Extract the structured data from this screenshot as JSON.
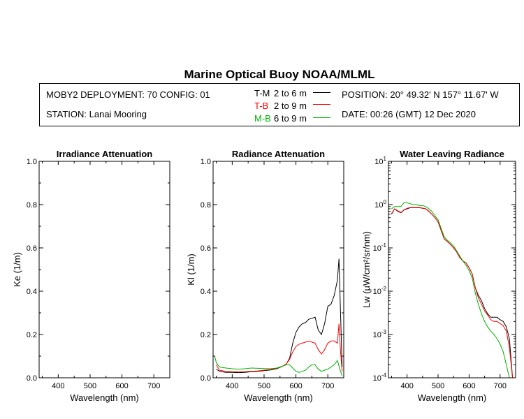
{
  "title": "Marine Optical Buoy NOAA/MLML",
  "header": {
    "deployment": "MOBY2 DEPLOYMENT: 70 CONFIG: 01",
    "station": "STATION: Lanai Mooring",
    "position": "POSITION: 20° 49.32' N   157° 11.67' W",
    "date": "DATE: 00:26 (GMT) 12 Dec 2020",
    "legend": [
      {
        "code": "T-M",
        "range": "2 to 6  m",
        "color": "#000000"
      },
      {
        "code": "T-B",
        "range": "2 to 9  m",
        "color": "#ff0000"
      },
      {
        "code": "M-B",
        "range": "6 to 9  m",
        "color": "#00b000"
      }
    ]
  },
  "chart_data": [
    {
      "type": "line",
      "title": "Irradiance Attenuation",
      "xlabel": "Wavelength (nm)",
      "ylabel": "Ke  (1/m)",
      "xlim": [
        340,
        750
      ],
      "ylim": [
        0,
        1
      ],
      "xticks": [
        "400",
        "500",
        "600",
        "700"
      ],
      "yticks": [
        "0.0",
        "0.2",
        "0.4",
        "0.6",
        "0.8",
        "1.0"
      ],
      "series": []
    },
    {
      "type": "line",
      "title": "Radiance Attenuation",
      "xlabel": "Wavelength (nm)",
      "ylabel": "Kl  (1/m)",
      "xlim": [
        340,
        750
      ],
      "ylim": [
        0,
        1
      ],
      "xticks": [
        "400",
        "500",
        "600",
        "700"
      ],
      "yticks": [
        "0.0",
        "0.2",
        "0.4",
        "0.6",
        "0.8",
        "1.0"
      ],
      "series": [
        {
          "name": "T-M",
          "color": "#000000",
          "x": [
            350,
            360,
            380,
            400,
            420,
            440,
            460,
            480,
            500,
            520,
            540,
            560,
            570,
            580,
            590,
            600,
            610,
            620,
            630,
            640,
            650,
            660,
            670,
            680,
            690,
            700,
            710,
            720,
            730,
            735,
            740,
            745
          ],
          "y": [
            0.04,
            0.03,
            0.025,
            0.025,
            0.024,
            0.025,
            0.028,
            0.03,
            0.033,
            0.036,
            0.042,
            0.055,
            0.065,
            0.09,
            0.16,
            0.21,
            0.235,
            0.25,
            0.255,
            0.27,
            0.275,
            0.28,
            0.22,
            0.2,
            0.25,
            0.33,
            0.34,
            0.38,
            0.45,
            0.55,
            0.3,
            0.05
          ]
        },
        {
          "name": "T-B",
          "color": "#ff0000",
          "x": [
            350,
            360,
            380,
            400,
            420,
            440,
            460,
            480,
            500,
            520,
            540,
            560,
            570,
            580,
            590,
            600,
            610,
            620,
            630,
            640,
            650,
            660,
            670,
            680,
            690,
            700,
            710,
            720,
            730,
            735,
            740,
            745
          ],
          "y": [
            0.06,
            0.035,
            0.03,
            0.028,
            0.027,
            0.028,
            0.03,
            0.032,
            0.035,
            0.038,
            0.044,
            0.055,
            0.065,
            0.085,
            0.12,
            0.145,
            0.155,
            0.16,
            0.165,
            0.17,
            0.165,
            0.16,
            0.13,
            0.11,
            0.13,
            0.16,
            0.17,
            0.17,
            0.16,
            0.25,
            0.12,
            0.03
          ]
        },
        {
          "name": "M-B",
          "color": "#00b000",
          "x": [
            345,
            350,
            360,
            380,
            400,
            420,
            440,
            460,
            480,
            500,
            520,
            540,
            560,
            570,
            580,
            590,
            600,
            610,
            620,
            630,
            640,
            650,
            660,
            670,
            680,
            690,
            700,
            710,
            720,
            730,
            740,
            745
          ],
          "y": [
            0.1,
            0.07,
            0.05,
            0.045,
            0.042,
            0.04,
            0.042,
            0.045,
            0.044,
            0.043,
            0.042,
            0.045,
            0.055,
            0.06,
            0.06,
            0.045,
            0.03,
            0.025,
            0.03,
            0.035,
            0.05,
            0.06,
            0.06,
            0.04,
            0.03,
            0.035,
            0.04,
            0.05,
            0.06,
            0.08,
            0.03,
            0.01
          ]
        }
      ]
    },
    {
      "type": "line",
      "title": "Water Leaving Radiance",
      "xlabel": "Wavelength (nm)",
      "ylabel": "Lw  (µW/cm²/sr/nm)",
      "xlim": [
        340,
        750
      ],
      "ylim": [
        0.0001,
        10
      ],
      "yscale": "log",
      "xticks": [
        "400",
        "500",
        "600",
        "700"
      ],
      "yticks": [
        "10^1",
        "10^0",
        "10^-1",
        "10^-2",
        "10^-3",
        "10^-4"
      ],
      "series": [
        {
          "name": "T-M",
          "color": "#000000",
          "x": [
            350,
            360,
            370,
            380,
            390,
            400,
            410,
            420,
            430,
            440,
            450,
            460,
            470,
            480,
            490,
            500,
            510,
            520,
            530,
            540,
            550,
            560,
            570,
            580,
            590,
            600,
            610,
            620,
            630,
            640,
            650,
            660,
            670,
            680,
            690,
            700,
            710,
            720,
            730,
            740
          ],
          "y": [
            0.6,
            0.8,
            0.7,
            0.65,
            0.75,
            0.8,
            0.85,
            0.85,
            0.85,
            0.85,
            0.82,
            0.8,
            0.7,
            0.6,
            0.5,
            0.4,
            0.25,
            0.16,
            0.14,
            0.12,
            0.1,
            0.08,
            0.06,
            0.05,
            0.045,
            0.035,
            0.025,
            0.012,
            0.008,
            0.006,
            0.004,
            0.003,
            0.0025,
            0.0025,
            0.0025,
            0.0022,
            0.002,
            0.0015,
            0.0008,
            0.0001
          ]
        },
        {
          "name": "T-B",
          "color": "#ff0000",
          "x": [
            350,
            360,
            370,
            380,
            390,
            400,
            410,
            420,
            430,
            440,
            450,
            460,
            470,
            480,
            490,
            500,
            510,
            520,
            530,
            540,
            550,
            560,
            570,
            580,
            590,
            600,
            610,
            620,
            630,
            640,
            650,
            660,
            670,
            680,
            690,
            700,
            710,
            720,
            730,
            740
          ],
          "y": [
            0.62,
            0.8,
            0.72,
            0.66,
            0.76,
            0.82,
            0.86,
            0.86,
            0.86,
            0.86,
            0.83,
            0.8,
            0.71,
            0.6,
            0.5,
            0.4,
            0.25,
            0.16,
            0.14,
            0.12,
            0.1,
            0.08,
            0.06,
            0.05,
            0.045,
            0.035,
            0.025,
            0.012,
            0.007,
            0.005,
            0.0035,
            0.0028,
            0.0022,
            0.002,
            0.002,
            0.0018,
            0.0016,
            0.0012,
            0.0005,
            0.0001
          ]
        },
        {
          "name": "M-B",
          "color": "#00b000",
          "x": [
            350,
            360,
            370,
            380,
            390,
            400,
            410,
            420,
            430,
            440,
            450,
            460,
            470,
            480,
            490,
            500,
            510,
            520,
            530,
            540,
            550,
            560,
            570,
            580,
            590,
            600,
            610,
            620,
            630,
            640,
            650,
            660,
            670,
            680,
            690,
            700,
            710,
            720,
            730
          ],
          "y": [
            0.8,
            0.9,
            0.9,
            0.9,
            1.1,
            1.1,
            1.05,
            1.0,
            1.0,
            0.95,
            0.95,
            0.9,
            0.8,
            0.7,
            0.55,
            0.45,
            0.28,
            0.18,
            0.15,
            0.13,
            0.11,
            0.085,
            0.065,
            0.05,
            0.04,
            0.03,
            0.02,
            0.009,
            0.005,
            0.003,
            0.002,
            0.0015,
            0.0012,
            0.001,
            0.0008,
            0.0006,
            0.0004,
            0.0002,
            0.0001
          ]
        }
      ]
    }
  ]
}
